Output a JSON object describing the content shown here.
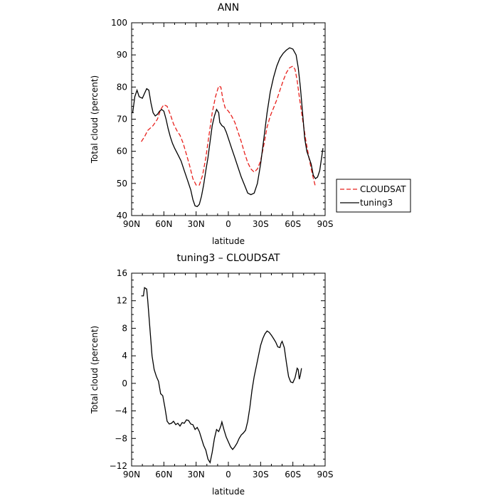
{
  "chart_data": [
    {
      "type": "line",
      "title": "ANN",
      "xlabel": "latitude",
      "ylabel": "Total cloud (percent)",
      "xlim": [
        90,
        -90
      ],
      "ylim": [
        40,
        100
      ],
      "xticks": [
        90,
        60,
        30,
        0,
        -30,
        -60,
        -90
      ],
      "xticklabels": [
        "90N",
        "60N",
        "30N",
        "0",
        "30S",
        "60S",
        "90S"
      ],
      "yticks": [
        40,
        50,
        60,
        70,
        80,
        90,
        100
      ],
      "yticklabels": [
        "40",
        "50",
        "60",
        "70",
        "80",
        "90",
        "100"
      ],
      "legend_position": "right",
      "series": [
        {
          "name": "CLOUDSAT",
          "color": "#e8201c",
          "dash": "dashed",
          "points": [
            [
              81,
              63
            ],
            [
              78,
              64.5
            ],
            [
              75,
              66.5
            ],
            [
              70,
              68
            ],
            [
              66,
              70
            ],
            [
              63,
              73
            ],
            [
              60,
              74.5
            ],
            [
              57,
              74
            ],
            [
              54,
              71.5
            ],
            [
              51,
              68.5
            ],
            [
              48,
              66.5
            ],
            [
              45,
              65
            ],
            [
              42,
              62.5
            ],
            [
              39,
              59
            ],
            [
              36,
              55.5
            ],
            [
              33,
              51.5
            ],
            [
              30,
              49.5
            ],
            [
              27,
              49.5
            ],
            [
              24,
              52.5
            ],
            [
              21,
              58
            ],
            [
              18,
              65
            ],
            [
              15,
              72
            ],
            [
              12,
              77
            ],
            [
              9,
              80.3
            ],
            [
              7,
              80
            ],
            [
              5,
              76
            ],
            [
              3,
              73.5
            ],
            [
              0,
              72.5
            ],
            [
              -3,
              71
            ],
            [
              -6,
              69
            ],
            [
              -9,
              66
            ],
            [
              -12,
              63
            ],
            [
              -15,
              59.5
            ],
            [
              -18,
              56.5
            ],
            [
              -21,
              54.5
            ],
            [
              -24,
              53.5
            ],
            [
              -27,
              54.5
            ],
            [
              -30,
              57
            ],
            [
              -33,
              62
            ],
            [
              -36,
              67.5
            ],
            [
              -39,
              71
            ],
            [
              -42,
              73.5
            ],
            [
              -45,
              76
            ],
            [
              -48,
              79
            ],
            [
              -51,
              82
            ],
            [
              -54,
              84.5
            ],
            [
              -57,
              86
            ],
            [
              -60,
              86.5
            ],
            [
              -62,
              85.5
            ],
            [
              -64,
              82
            ],
            [
              -66,
              77
            ],
            [
              -69,
              70
            ],
            [
              -72,
              63.5
            ],
            [
              -75,
              58
            ],
            [
              -78,
              53
            ],
            [
              -81,
              49
            ]
          ]
        },
        {
          "name": "tuning3",
          "color": "#000000",
          "dash": "solid",
          "points": [
            [
              89,
              72
            ],
            [
              87,
              77
            ],
            [
              85,
              79
            ],
            [
              83,
              77
            ],
            [
              80,
              76.5
            ],
            [
              78,
              78
            ],
            [
              76,
              79.5
            ],
            [
              74,
              79
            ],
            [
              72,
              75
            ],
            [
              70,
              72
            ],
            [
              68,
              71
            ],
            [
              66,
              71.5
            ],
            [
              64,
              72.5
            ],
            [
              62,
              73
            ],
            [
              60,
              72.5
            ],
            [
              58,
              70
            ],
            [
              56,
              67
            ],
            [
              54,
              64.5
            ],
            [
              52,
              62.5
            ],
            [
              50,
              61
            ],
            [
              47,
              59
            ],
            [
              44,
              57
            ],
            [
              41,
              54
            ],
            [
              38,
              51
            ],
            [
              35,
              48
            ],
            [
              33,
              45
            ],
            [
              31,
              43
            ],
            [
              29,
              42.8
            ],
            [
              27,
              43.5
            ],
            [
              25,
              46
            ],
            [
              23,
              49.5
            ],
            [
              21,
              54
            ],
            [
              19,
              58
            ],
            [
              17,
              63
            ],
            [
              15,
              68
            ],
            [
              13,
              71
            ],
            [
              11,
              73
            ],
            [
              9,
              72
            ],
            [
              8,
              69
            ],
            [
              6,
              68
            ],
            [
              4,
              67.5
            ],
            [
              2,
              66
            ],
            [
              0,
              64
            ],
            [
              -3,
              61
            ],
            [
              -6,
              58
            ],
            [
              -9,
              55
            ],
            [
              -12,
              52
            ],
            [
              -15,
              49.5
            ],
            [
              -18,
              47
            ],
            [
              -21,
              46.5
            ],
            [
              -24,
              47
            ],
            [
              -27,
              50
            ],
            [
              -30,
              56
            ],
            [
              -33,
              64
            ],
            [
              -36,
              72
            ],
            [
              -39,
              78.5
            ],
            [
              -42,
              83
            ],
            [
              -45,
              86.5
            ],
            [
              -48,
              89
            ],
            [
              -51,
              90.5
            ],
            [
              -54,
              91.5
            ],
            [
              -57,
              92.2
            ],
            [
              -60,
              91.8
            ],
            [
              -63,
              90
            ],
            [
              -65,
              86
            ],
            [
              -67,
              80
            ],
            [
              -69,
              72
            ],
            [
              -71,
              64
            ],
            [
              -73,
              60
            ],
            [
              -75,
              58
            ],
            [
              -77,
              56
            ],
            [
              -79,
              52.5
            ],
            [
              -81,
              51.5
            ],
            [
              -83,
              52
            ],
            [
              -85,
              54
            ],
            [
              -88,
              61
            ]
          ]
        }
      ]
    },
    {
      "type": "line",
      "title": "tuning3 – CLOUDSAT",
      "xlabel": "latitude",
      "ylabel": "Total cloud (percent)",
      "xlim": [
        90,
        -90
      ],
      "ylim": [
        -12,
        16
      ],
      "xticks": [
        90,
        60,
        30,
        0,
        -30,
        -60,
        -90
      ],
      "xticklabels": [
        "90N",
        "60N",
        "30N",
        "0",
        "30S",
        "60S",
        "90S"
      ],
      "yticks": [
        -12,
        -8,
        -4,
        0,
        4,
        8,
        12,
        16
      ],
      "yticklabels": [
        "−12",
        "−8",
        "−4",
        "0",
        "4",
        "8",
        "12",
        "16"
      ],
      "series": [
        {
          "color": "#000000",
          "dash": "solid",
          "points": [
            [
              81,
              12.7
            ],
            [
              79,
              12.7
            ],
            [
              78,
              13.9
            ],
            [
              76,
              13.7
            ],
            [
              75,
              12
            ],
            [
              73,
              8
            ],
            [
              71,
              4
            ],
            [
              69,
              2
            ],
            [
              67,
              1
            ],
            [
              65,
              0.3
            ],
            [
              63,
              -1.5
            ],
            [
              61,
              -1.8
            ],
            [
              59,
              -3.5
            ],
            [
              57,
              -5.5
            ],
            [
              55,
              -5.9
            ],
            [
              53,
              -5.8
            ],
            [
              51,
              -5.5
            ],
            [
              49,
              -6
            ],
            [
              47,
              -5.8
            ],
            [
              45,
              -6.2
            ],
            [
              43,
              -5.7
            ],
            [
              41,
              -5.8
            ],
            [
              39,
              -5.3
            ],
            [
              37,
              -5.4
            ],
            [
              35,
              -5.9
            ],
            [
              33,
              -6
            ],
            [
              31,
              -6.7
            ],
            [
              29,
              -6.4
            ],
            [
              27,
              -7
            ],
            [
              25,
              -8
            ],
            [
              23,
              -9
            ],
            [
              21,
              -9.7
            ],
            [
              19,
              -11
            ],
            [
              17,
              -11.5
            ],
            [
              15,
              -10
            ],
            [
              13,
              -8
            ],
            [
              11,
              -6.7
            ],
            [
              9,
              -7
            ],
            [
              7,
              -6.2
            ],
            [
              6,
              -5.6
            ],
            [
              4,
              -6.8
            ],
            [
              2,
              -7.8
            ],
            [
              0,
              -8.5
            ],
            [
              -2,
              -9.2
            ],
            [
              -4,
              -9.6
            ],
            [
              -6,
              -9.2
            ],
            [
              -8,
              -8.7
            ],
            [
              -10,
              -8
            ],
            [
              -12,
              -7.5
            ],
            [
              -14,
              -7.2
            ],
            [
              -16,
              -6.8
            ],
            [
              -18,
              -5.5
            ],
            [
              -20,
              -3.5
            ],
            [
              -22,
              -1
            ],
            [
              -24,
              1
            ],
            [
              -26,
              2.5
            ],
            [
              -28,
              4
            ],
            [
              -30,
              5.5
            ],
            [
              -32,
              6.5
            ],
            [
              -34,
              7.2
            ],
            [
              -36,
              7.6
            ],
            [
              -38,
              7.4
            ],
            [
              -40,
              7
            ],
            [
              -42,
              6.5
            ],
            [
              -44,
              6
            ],
            [
              -46,
              5.3
            ],
            [
              -48,
              5.2
            ],
            [
              -49,
              5.8
            ],
            [
              -50,
              6.1
            ],
            [
              -52,
              5.2
            ],
            [
              -54,
              3
            ],
            [
              -56,
              1
            ],
            [
              -58,
              0.2
            ],
            [
              -60,
              0.1
            ],
            [
              -62,
              0.8
            ],
            [
              -64,
              2.2
            ],
            [
              -65,
              2
            ],
            [
              -66,
              0.6
            ],
            [
              -67,
              1.2
            ],
            [
              -68,
              2.2
            ]
          ]
        }
      ]
    }
  ]
}
